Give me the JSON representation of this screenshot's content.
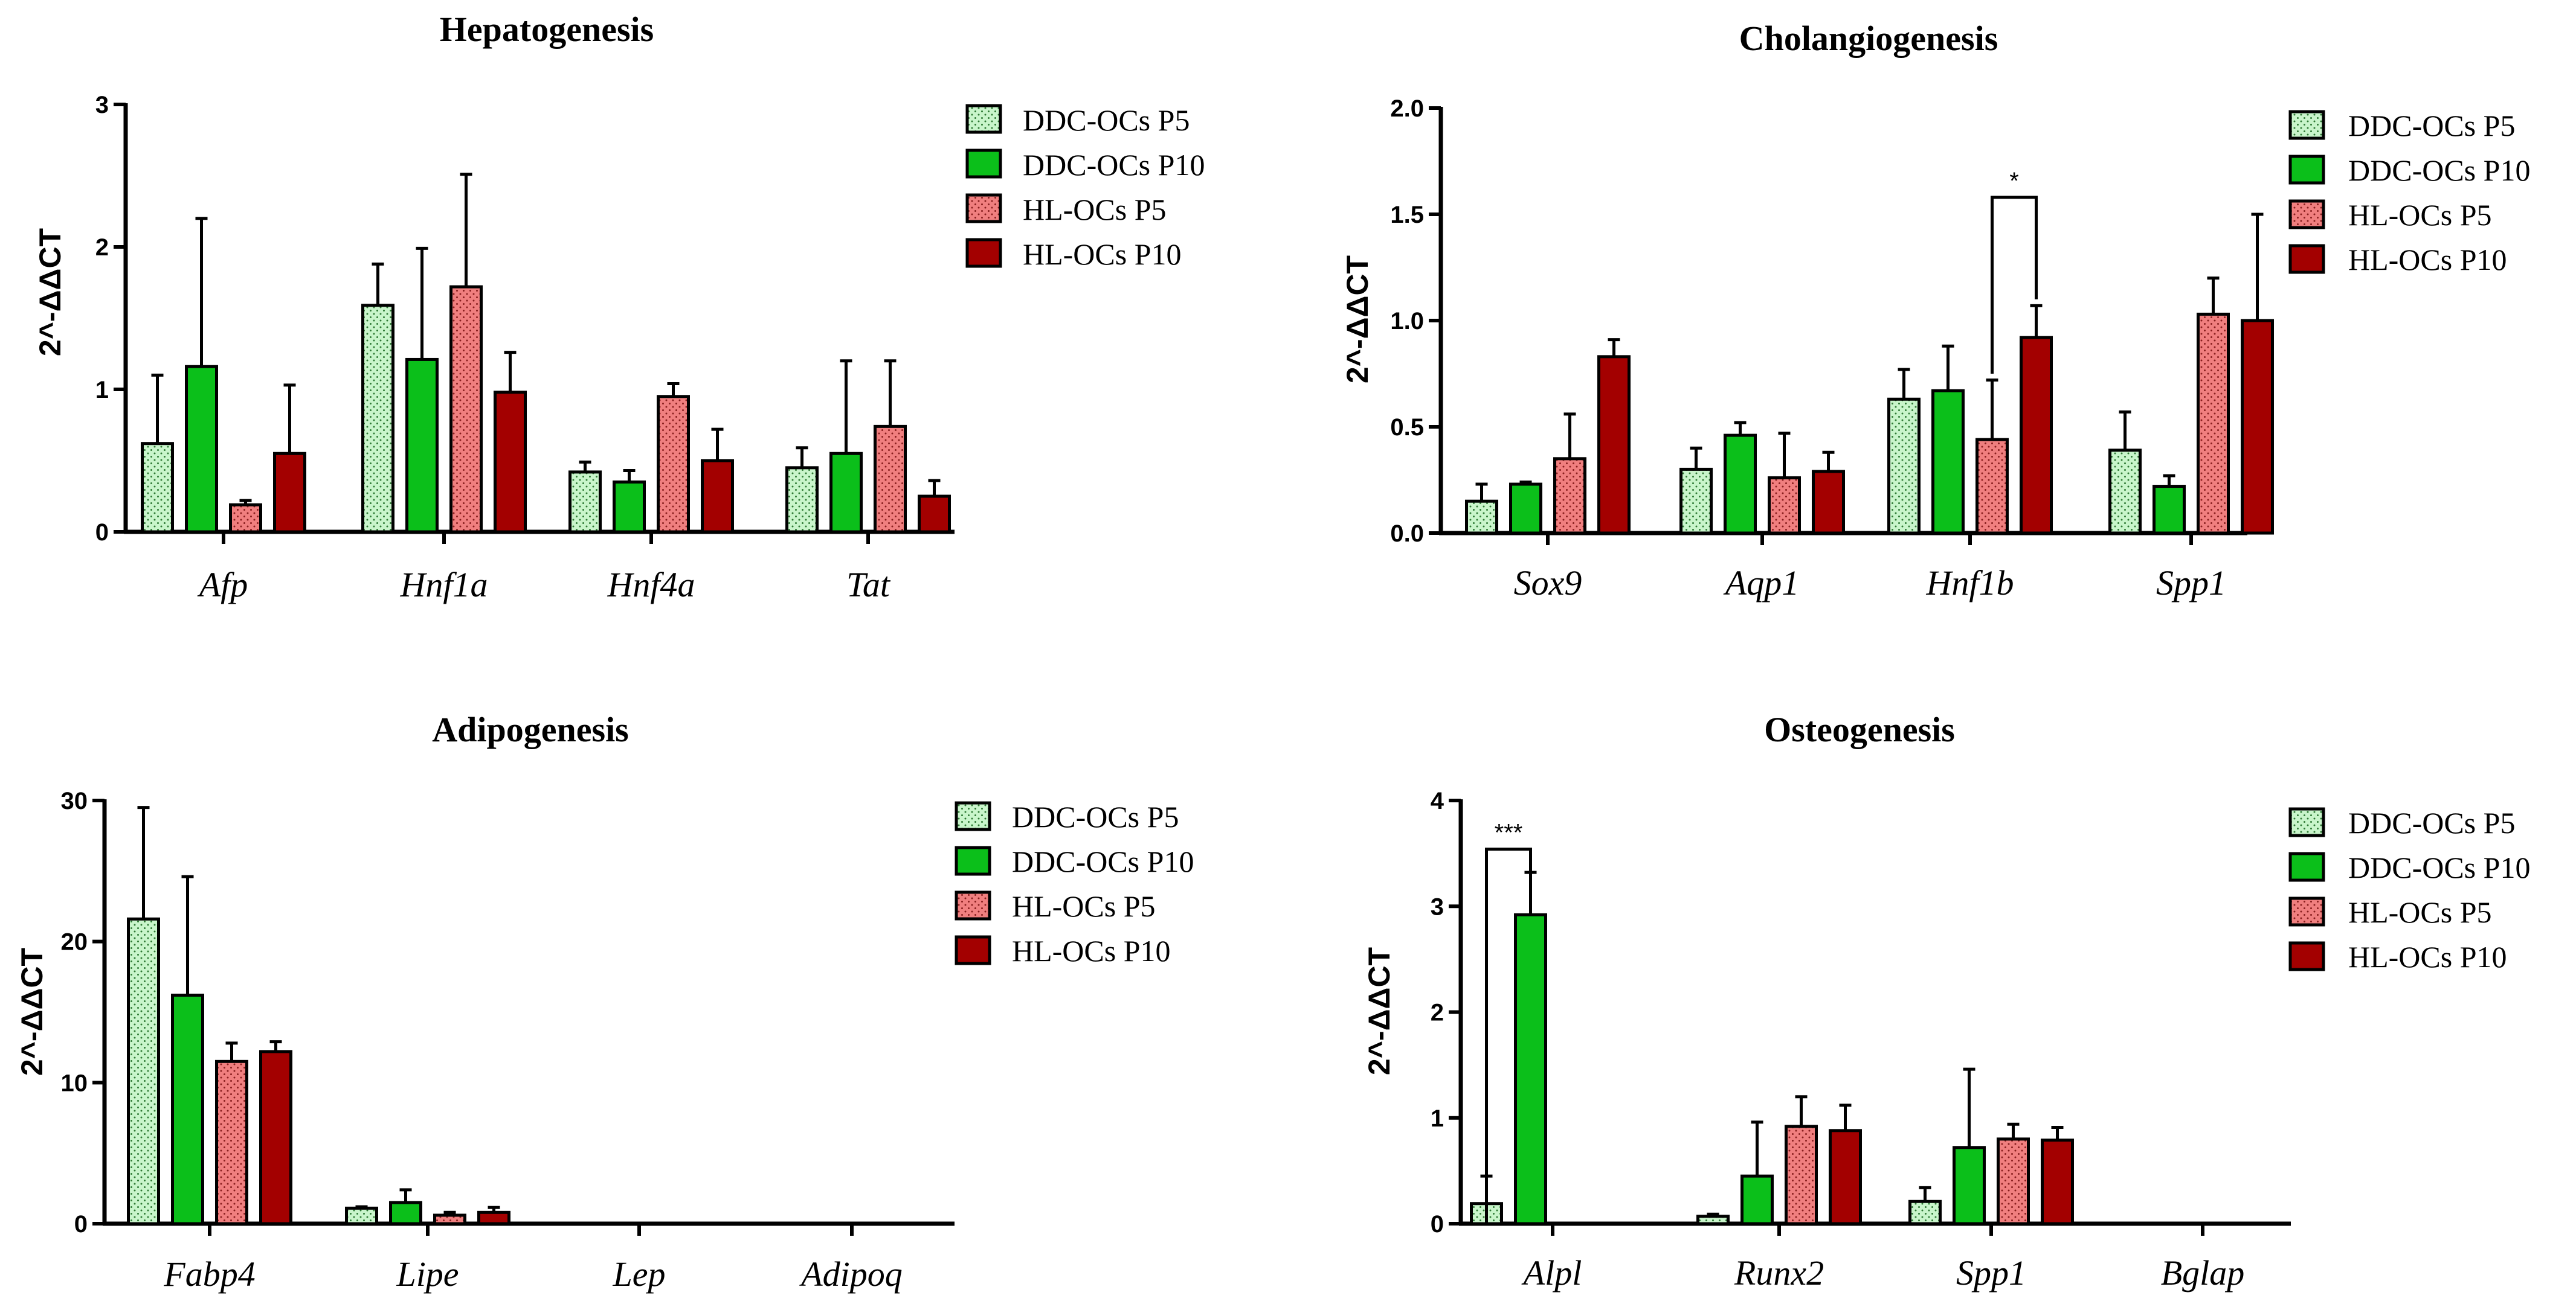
{
  "colors": {
    "DDC-OCs P5": "#c9f5cb",
    "DDC-OCs P10": "#0bbf1a",
    "HL-OCs P5": "#f07f7f",
    "HL-OCs P10": "#a30000",
    "stroke": "#000000"
  },
  "chart_data": [
    {
      "type": "bar",
      "title": "Hepatogenesis",
      "ylabel": "2^-ΔΔCT",
      "xlabel": "",
      "ylim": [
        0,
        3
      ],
      "yticks": [
        "0",
        "1",
        "2",
        "3"
      ],
      "categories": [
        "Afp",
        "Hnf1a",
        "Hnf4a",
        "Tat"
      ],
      "series": [
        {
          "name": "DDC-OCs P5",
          "values": [
            0.62,
            1.59,
            0.42,
            0.45
          ],
          "errors": [
            0.48,
            0.29,
            0.07,
            0.14
          ],
          "pattern": "dots"
        },
        {
          "name": "DDC-OCs P10",
          "values": [
            1.16,
            1.21,
            0.35,
            0.55
          ],
          "errors": [
            1.04,
            0.78,
            0.08,
            0.65
          ],
          "pattern": "none"
        },
        {
          "name": "HL-OCs P5",
          "values": [
            0.19,
            1.72,
            0.95,
            0.74
          ],
          "errors": [
            0.03,
            0.79,
            0.09,
            0.46
          ],
          "pattern": "dots"
        },
        {
          "name": "HL-OCs P10",
          "values": [
            0.55,
            0.98,
            0.5,
            0.25
          ],
          "errors": [
            0.48,
            0.28,
            0.22,
            0.11
          ],
          "pattern": "none"
        }
      ],
      "legend_position": "right",
      "significance": []
    },
    {
      "type": "bar",
      "title": "Cholangiogenesis",
      "ylabel": "2^-ΔΔCT",
      "xlabel": "",
      "ylim": [
        0,
        2
      ],
      "yticks": [
        "0.0",
        "0.5",
        "1.0",
        "1.5",
        "2.0"
      ],
      "categories": [
        "Sox9",
        "Aqp1",
        "Hnf1b",
        "Spp1"
      ],
      "series": [
        {
          "name": "DDC-OCs P5",
          "values": [
            0.15,
            0.3,
            0.63,
            0.39
          ],
          "errors": [
            0.08,
            0.1,
            0.14,
            0.18
          ],
          "pattern": "dots"
        },
        {
          "name": "DDC-OCs P10",
          "values": [
            0.23,
            0.46,
            0.67,
            0.22
          ],
          "errors": [
            0.01,
            0.06,
            0.21,
            0.05
          ],
          "pattern": "none"
        },
        {
          "name": "HL-OCs P5",
          "values": [
            0.35,
            0.26,
            0.44,
            1.03
          ],
          "errors": [
            0.21,
            0.21,
            0.28,
            0.17
          ],
          "pattern": "dots"
        },
        {
          "name": "HL-OCs P10",
          "values": [
            0.83,
            0.29,
            0.92,
            1.0
          ],
          "errors": [
            0.08,
            0.09,
            0.15,
            0.5
          ],
          "pattern": "none"
        }
      ],
      "legend_position": "right",
      "significance": [
        {
          "label": "*",
          "category": 2,
          "from_series": 2,
          "to_series": 3,
          "level": 1.58,
          "from_bottom": 0.75,
          "to_bottom": 1.1
        }
      ]
    },
    {
      "type": "bar",
      "title": "Adipogenesis",
      "ylabel": "2^-ΔΔCT",
      "xlabel": "",
      "ylim": [
        0,
        30
      ],
      "yticks": [
        "0",
        "10",
        "20",
        "30"
      ],
      "categories": [
        "Fabp4",
        "Lipe",
        "Lep",
        "Adipoq"
      ],
      "series": [
        {
          "name": "DDC-OCs P5",
          "values": [
            21.6,
            1.1,
            0,
            0
          ],
          "errors": [
            7.9,
            0.1,
            0,
            0
          ],
          "pattern": "dots"
        },
        {
          "name": "DDC-OCs P10",
          "values": [
            16.2,
            1.5,
            0,
            0
          ],
          "errors": [
            8.4,
            0.9,
            0,
            0
          ],
          "pattern": "none"
        },
        {
          "name": "HL-OCs P5",
          "values": [
            11.5,
            0.6,
            0,
            0
          ],
          "errors": [
            1.3,
            0.2,
            0,
            0
          ],
          "pattern": "dots"
        },
        {
          "name": "HL-OCs P10",
          "values": [
            12.2,
            0.8,
            0,
            0
          ],
          "errors": [
            0.7,
            0.35,
            0,
            0
          ],
          "pattern": "none"
        }
      ],
      "legend_position": "right",
      "significance": []
    },
    {
      "type": "bar",
      "title": "Osteogenesis",
      "ylabel": "2^-ΔΔCT",
      "xlabel": "",
      "ylim": [
        0,
        4
      ],
      "yticks": [
        "0",
        "1",
        "2",
        "3",
        "4"
      ],
      "categories": [
        "Alpl",
        "Runx2",
        "Spp1",
        "Bglap"
      ],
      "series": [
        {
          "name": "DDC-OCs P5",
          "values": [
            0.19,
            0.07,
            0.21,
            0
          ],
          "errors": [
            0.26,
            0.02,
            0.13,
            0
          ],
          "pattern": "dots"
        },
        {
          "name": "DDC-OCs P10",
          "values": [
            2.92,
            0.45,
            0.72,
            0
          ],
          "errors": [
            0.4,
            0.51,
            0.74,
            0
          ],
          "pattern": "none"
        },
        {
          "name": "HL-OCs P5",
          "values": [
            0,
            0.92,
            0.8,
            0
          ],
          "errors": [
            0,
            0.28,
            0.14,
            0
          ],
          "pattern": "dots"
        },
        {
          "name": "HL-OCs P10",
          "values": [
            0,
            0.88,
            0.79,
            0
          ],
          "errors": [
            0,
            0.24,
            0.12,
            0
          ],
          "pattern": "none"
        }
      ],
      "legend_position": "right",
      "significance": [
        {
          "label": "***",
          "category": 0,
          "from_series": 0,
          "to_series": 1,
          "level": 3.54,
          "from_bottom": 0.0,
          "to_bottom": 3.3
        }
      ]
    }
  ]
}
